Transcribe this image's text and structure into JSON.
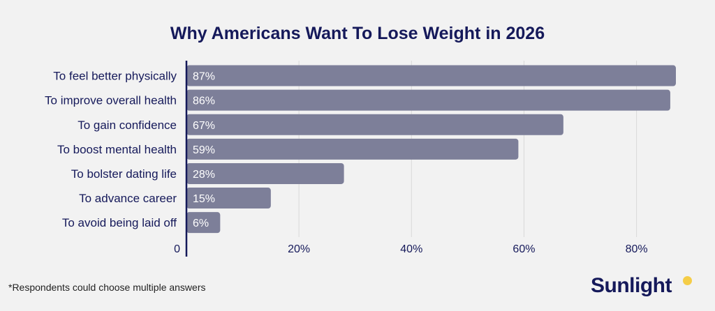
{
  "chart_data": {
    "type": "bar",
    "orientation": "horizontal",
    "title": "Why Americans Want To Lose Weight in 2026",
    "categories": [
      "To feel better physically",
      "To improve overall health",
      "To gain confidence",
      "To boost mental health",
      "To bolster dating life",
      "To advance career",
      "To avoid being laid off"
    ],
    "values": [
      87,
      86,
      67,
      59,
      28,
      15,
      6
    ],
    "value_labels": [
      "87%",
      "86%",
      "67%",
      "59%",
      "28%",
      "15%",
      "6%"
    ],
    "xticks": [
      {
        "value": 0,
        "label": "0"
      },
      {
        "value": 20,
        "label": "20%"
      },
      {
        "value": 40,
        "label": "40%"
      },
      {
        "value": 60,
        "label": "60%"
      },
      {
        "value": 80,
        "label": "80%"
      }
    ],
    "xlim": [
      0,
      87
    ],
    "grid": true,
    "bar_color": "#7d7f99",
    "axis_color": "#15195a",
    "grid_color": "#d9d9d9"
  },
  "footnote": "*Respondents could choose multiple answers",
  "logo": {
    "text": "Sunlight",
    "dot_color": "#f5cd47"
  }
}
